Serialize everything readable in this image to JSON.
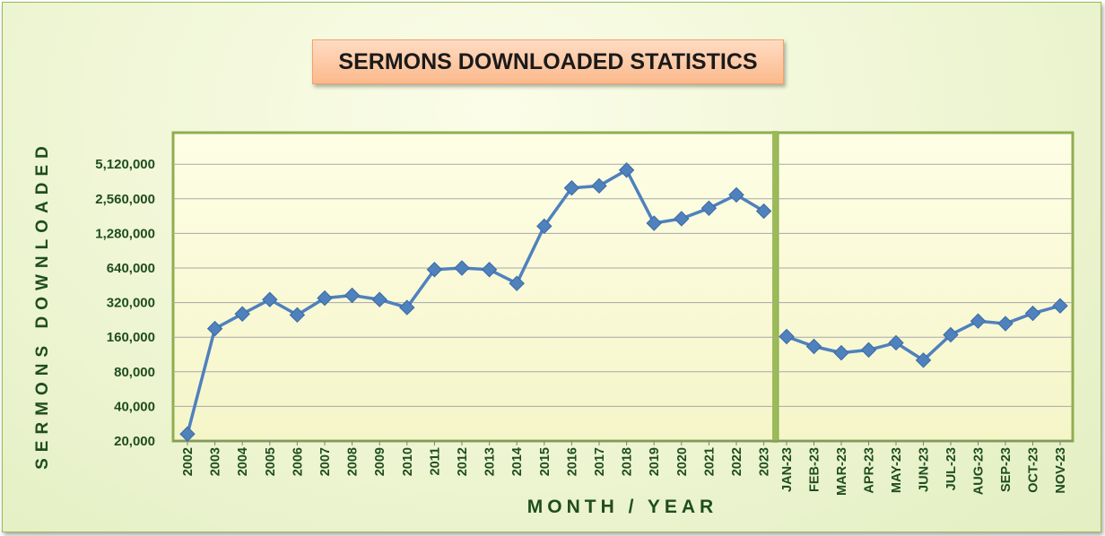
{
  "chart_data": {
    "type": "line",
    "title": "SERMONS DOWNLOADED STATISTICS",
    "xlabel": "MONTH  /  YEAR",
    "ylabel": "SERMONS DOWNLOADED",
    "y_scale": "log2",
    "ylim": [
      20000,
      7200000
    ],
    "yticks": [
      "20,000",
      "40,000",
      "80,000",
      "160,000",
      "320,000",
      "640,000",
      "1,280,000",
      "2,560,000",
      "5,120,000"
    ],
    "ytick_values": [
      20000,
      40000,
      80000,
      160000,
      320000,
      640000,
      1280000,
      2560000,
      5120000
    ],
    "grid": true,
    "line_color": "#4f81bd",
    "marker": "diamond",
    "panels": [
      {
        "name": "yearly",
        "x": [
          "2002",
          "2003",
          "2004",
          "2005",
          "2006",
          "2007",
          "2008",
          "2009",
          "2010",
          "2011",
          "2012",
          "2013",
          "2014",
          "2015",
          "2016",
          "2017",
          "2018",
          "2019",
          "2020",
          "2021",
          "2022",
          "2023"
        ],
        "values": [
          23000,
          190000,
          255000,
          340000,
          250000,
          350000,
          370000,
          340000,
          290000,
          620000,
          640000,
          620000,
          470000,
          1480000,
          3180000,
          3320000,
          4550000,
          1570000,
          1720000,
          2120000,
          2770000,
          2000000
        ]
      },
      {
        "name": "monthly",
        "x": [
          "JAN-23",
          "FEB-23",
          "MAR-23",
          "APR-23",
          "MAY-23",
          "JUN-23",
          "JUL-23",
          "AUG-23",
          "SEP-23",
          "OCT-23",
          "NOV-23"
        ],
        "values": [
          162000,
          133000,
          117000,
          124000,
          143000,
          101000,
          168000,
          221000,
          210000,
          258000,
          300000
        ]
      }
    ]
  }
}
